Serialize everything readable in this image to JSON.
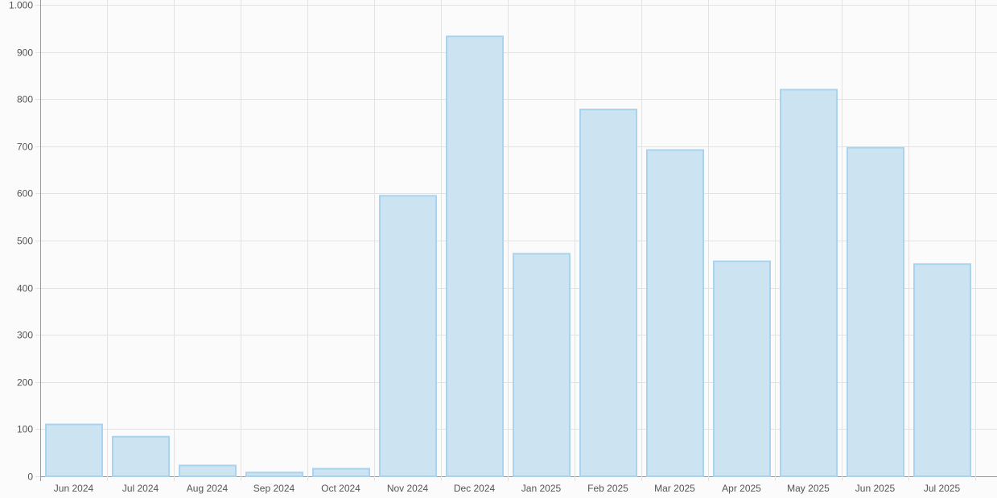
{
  "chart_data": {
    "type": "bar",
    "categories": [
      "Jun 2024",
      "Jul 2024",
      "Aug 2024",
      "Sep 2024",
      "Oct 2024",
      "Nov 2024",
      "Dec 2024",
      "Jan 2025",
      "Feb 2025",
      "Mar 2025",
      "Apr 2025",
      "May 2025",
      "Jun 2025",
      "Jul 2025"
    ],
    "values": [
      110,
      84,
      23,
      8,
      16,
      595,
      933,
      472,
      778,
      692,
      456,
      820,
      697,
      450
    ],
    "ylim": [
      0,
      1000
    ],
    "yticks": [
      0,
      100,
      200,
      300,
      400,
      500,
      600,
      700,
      800,
      900,
      1000
    ],
    "ytick_labels": [
      "0",
      "100",
      "200",
      "300",
      "400",
      "500",
      "600",
      "700",
      "800",
      "900",
      "1.000"
    ],
    "grid": true,
    "colors": {
      "bar_fill": "#cce3f2",
      "bar_stroke": "#a9d3ee",
      "grid": "#e2e2e2",
      "axis": "#999999"
    }
  }
}
